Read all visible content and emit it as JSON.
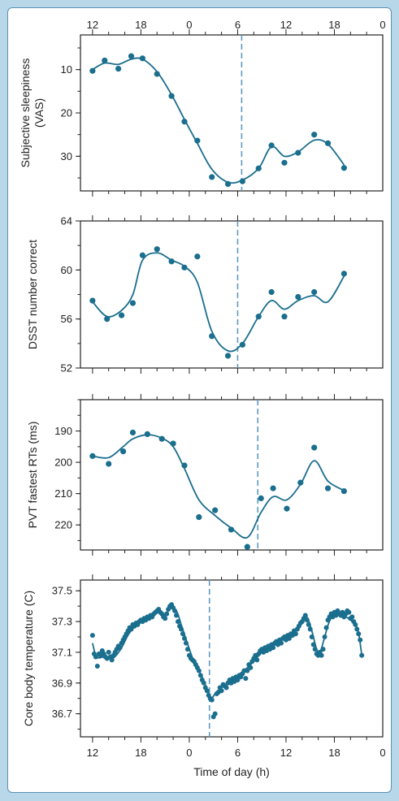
{
  "colors": {
    "background": "#b8d8ea",
    "card_border": "#5b8fb0",
    "series": "#1a6e8e",
    "dashed_line": "#5b9bc2",
    "axis": "#222222"
  },
  "top_axis": {
    "tick_labels": [
      "12",
      "18",
      "0",
      "6",
      "12",
      "18",
      "0"
    ]
  },
  "x_axis": {
    "label": "Time of day (h)",
    "tick_labels": [
      "12",
      "18",
      "0",
      "6",
      "12",
      "18",
      "0"
    ]
  },
  "chart_data": [
    {
      "type": "line",
      "ylabel": "Subjective sleepiness (VAS)",
      "ylim": [
        2,
        38
      ],
      "inverted_y": true,
      "yticks": [
        10,
        20,
        30
      ],
      "x_unit": "hours from 12:00 on day 1",
      "xlim": [
        -1.5,
        36
      ],
      "dashed_marker_x": 18.5,
      "points": [
        [
          0,
          10.3
        ],
        [
          1.5,
          7.9
        ],
        [
          3.2,
          9.8
        ],
        [
          4.8,
          6.9
        ],
        [
          6.2,
          7.4
        ],
        [
          8,
          11
        ],
        [
          9.8,
          16.1
        ],
        [
          11.4,
          22
        ],
        [
          13,
          26.4
        ],
        [
          14.8,
          34.8
        ],
        [
          16.8,
          36.4
        ],
        [
          18.6,
          35.8
        ],
        [
          20.6,
          32.8
        ],
        [
          22.2,
          27.5
        ],
        [
          23.8,
          31.5
        ],
        [
          25.5,
          29.2
        ],
        [
          27.5,
          25
        ],
        [
          29.2,
          27
        ],
        [
          31.2,
          32.7
        ]
      ],
      "fit": [
        [
          0,
          10
        ],
        [
          1.5,
          8.5
        ],
        [
          3.2,
          8.8
        ],
        [
          4.8,
          7.6
        ],
        [
          6.2,
          7.6
        ],
        [
          8,
          10.5
        ],
        [
          9.8,
          15.8
        ],
        [
          11.4,
          21.5
        ],
        [
          13,
          27
        ],
        [
          14.8,
          33
        ],
        [
          16.8,
          36
        ],
        [
          18.6,
          35.5
        ],
        [
          20.6,
          32.8
        ],
        [
          22.2,
          27.8
        ],
        [
          23.8,
          30
        ],
        [
          25.5,
          29
        ],
        [
          27.5,
          26.3
        ],
        [
          29.2,
          27.2
        ],
        [
          31.2,
          32
        ]
      ]
    },
    {
      "type": "line",
      "ylabel": "DSST number correct",
      "ylim": [
        52,
        64
      ],
      "inverted_y": false,
      "yticks": [
        52,
        56,
        60,
        64
      ],
      "x_unit": "hours from 12:00 on day 1",
      "xlim": [
        -1.5,
        36
      ],
      "dashed_marker_x": 18,
      "points": [
        [
          0,
          57.5
        ],
        [
          1.8,
          56
        ],
        [
          3.6,
          56.3
        ],
        [
          5,
          57.3
        ],
        [
          6.2,
          61.2
        ],
        [
          8,
          61.7
        ],
        [
          9.8,
          60.7
        ],
        [
          11.4,
          60.2
        ],
        [
          13,
          61.1
        ],
        [
          14.8,
          54.6
        ],
        [
          16.8,
          53
        ],
        [
          18.6,
          53.9
        ],
        [
          20.6,
          56.2
        ],
        [
          22.2,
          58.2
        ],
        [
          23.8,
          56.2
        ],
        [
          25.5,
          57.8
        ],
        [
          27.5,
          58.2
        ],
        [
          31.2,
          59.7
        ]
      ],
      "fit": [
        [
          0,
          57.4
        ],
        [
          1.8,
          56.2
        ],
        [
          3.6,
          56.7
        ],
        [
          5,
          58
        ],
        [
          6.2,
          60.8
        ],
        [
          8,
          61.4
        ],
        [
          9.8,
          60.8
        ],
        [
          11.4,
          60.3
        ],
        [
          13,
          59
        ],
        [
          14.8,
          55
        ],
        [
          16.8,
          53.4
        ],
        [
          18.6,
          54
        ],
        [
          20.6,
          56.2
        ],
        [
          22.2,
          57.5
        ],
        [
          23.8,
          56.8
        ],
        [
          25.5,
          57.5
        ],
        [
          27.5,
          57.9
        ],
        [
          29.2,
          57.4
        ],
        [
          31.2,
          59.5
        ]
      ]
    },
    {
      "type": "line",
      "ylabel": "PVT fastest RTs (ms)",
      "ylim": [
        180,
        228
      ],
      "inverted_y": true,
      "yticks": [
        190,
        200,
        210,
        220
      ],
      "x_unit": "hours from 12:00 on day 1",
      "xlim": [
        -1.5,
        36
      ],
      "dashed_marker_x": 20.5,
      "points": [
        [
          0,
          198
        ],
        [
          2,
          200.5
        ],
        [
          3.8,
          196.5
        ],
        [
          5,
          190.5
        ],
        [
          6.8,
          191
        ],
        [
          8.6,
          192.5
        ],
        [
          10,
          194
        ],
        [
          11.4,
          201
        ],
        [
          13.2,
          217.5
        ],
        [
          15.2,
          215.3
        ],
        [
          17.2,
          221.5
        ],
        [
          19.2,
          227
        ],
        [
          20.9,
          211.5
        ],
        [
          22.4,
          208.3
        ],
        [
          24.1,
          214.8
        ],
        [
          25.8,
          206.5
        ],
        [
          27.5,
          195.3
        ],
        [
          29.2,
          208.3
        ],
        [
          31.2,
          209.2
        ]
      ],
      "fit": [
        [
          0,
          198
        ],
        [
          2,
          198.5
        ],
        [
          3.8,
          195
        ],
        [
          5,
          192.5
        ],
        [
          6.8,
          191.2
        ],
        [
          8.6,
          192.3
        ],
        [
          10,
          195
        ],
        [
          11.4,
          202
        ],
        [
          13.2,
          212
        ],
        [
          15.2,
          217
        ],
        [
          17.2,
          221
        ],
        [
          19.2,
          224
        ],
        [
          20.9,
          216
        ],
        [
          22.4,
          211
        ],
        [
          24.1,
          212
        ],
        [
          25.8,
          207
        ],
        [
          27.5,
          199.5
        ],
        [
          29.2,
          206
        ],
        [
          31.2,
          209
        ]
      ]
    },
    {
      "type": "line",
      "ylabel": "Core body temperature (C)",
      "ylim": [
        36.55,
        37.57
      ],
      "inverted_y": false,
      "yticks": [
        36.7,
        36.9,
        37.1,
        37.3,
        37.5
      ],
      "x_unit": "hours from 12:00 on day 1",
      "xlim": [
        -1.5,
        36
      ],
      "dashed_marker_x": 14.5,
      "fit": [
        [
          0,
          37.16
        ],
        [
          0.5,
          37.07
        ],
        [
          1.5,
          37.07
        ],
        [
          2.5,
          37.06
        ],
        [
          3.5,
          37.12
        ],
        [
          4.5,
          37.22
        ],
        [
          5.5,
          37.28
        ],
        [
          6.5,
          37.32
        ],
        [
          7.5,
          37.35
        ],
        [
          8.3,
          37.37
        ],
        [
          9,
          37.34
        ],
        [
          9.5,
          37.38
        ],
        [
          10,
          37.39
        ],
        [
          10.5,
          37.36
        ],
        [
          11,
          37.28
        ],
        [
          11.5,
          37.2
        ],
        [
          12.5,
          37.05
        ],
        [
          13.5,
          36.95
        ],
        [
          14.2,
          36.86
        ],
        [
          14.7,
          36.8
        ],
        [
          15.2,
          36.83
        ],
        [
          16,
          36.87
        ],
        [
          17,
          36.91
        ],
        [
          18,
          36.95
        ],
        [
          19,
          36.99
        ],
        [
          20,
          37.04
        ],
        [
          21,
          37.1
        ],
        [
          22,
          37.13
        ],
        [
          23,
          37.16
        ],
        [
          24,
          37.2
        ],
        [
          25,
          37.23
        ],
        [
          26,
          37.3
        ],
        [
          26.6,
          37.33
        ],
        [
          27.2,
          37.24
        ],
        [
          27.8,
          37.12
        ],
        [
          28.2,
          37.1
        ],
        [
          28.7,
          37.18
        ],
        [
          29.3,
          37.29
        ],
        [
          30,
          37.35
        ],
        [
          30.8,
          37.36
        ],
        [
          31.5,
          37.33
        ],
        [
          32.2,
          37.3
        ],
        [
          32.9,
          37.25
        ],
        [
          33.4,
          37.08
        ]
      ],
      "points": [
        [
          0,
          37.21
        ],
        [
          0.2,
          37.09
        ],
        [
          0.4,
          37.07
        ],
        [
          0.6,
          37.01
        ],
        [
          0.8,
          37.09
        ],
        [
          1.0,
          37.08
        ],
        [
          1.2,
          37.11
        ],
        [
          1.4,
          37.09
        ],
        [
          1.6,
          37.07
        ],
        [
          1.8,
          37.06
        ],
        [
          2.0,
          37.1
        ],
        [
          2.2,
          37.07
        ],
        [
          2.4,
          37.05
        ],
        [
          2.6,
          37.08
        ],
        [
          2.8,
          37.1
        ],
        [
          3.0,
          37.12
        ],
        [
          3.2,
          37.14
        ],
        [
          3.4,
          37.13
        ],
        [
          3.6,
          37.16
        ],
        [
          3.8,
          37.18
        ],
        [
          4.0,
          37.2
        ],
        [
          4.2,
          37.22
        ],
        [
          4.4,
          37.24
        ],
        [
          4.6,
          37.26
        ],
        [
          4.8,
          37.25
        ],
        [
          5.0,
          37.28
        ],
        [
          5.2,
          37.27
        ],
        [
          5.4,
          37.29
        ],
        [
          5.6,
          37.28
        ],
        [
          5.8,
          37.3
        ],
        [
          6.0,
          37.31
        ],
        [
          6.2,
          37.3
        ],
        [
          6.4,
          37.32
        ],
        [
          6.6,
          37.31
        ],
        [
          6.8,
          37.33
        ],
        [
          7.0,
          37.32
        ],
        [
          7.2,
          37.34
        ],
        [
          7.4,
          37.33
        ],
        [
          7.6,
          37.35
        ],
        [
          7.8,
          37.36
        ],
        [
          8.0,
          37.37
        ],
        [
          8.2,
          37.38
        ],
        [
          8.4,
          37.36
        ],
        [
          8.6,
          37.35
        ],
        [
          8.8,
          37.33
        ],
        [
          9.0,
          37.32
        ],
        [
          9.2,
          37.35
        ],
        [
          9.4,
          37.38
        ],
        [
          9.6,
          37.4
        ],
        [
          9.8,
          37.41
        ],
        [
          10.0,
          37.39
        ],
        [
          10.2,
          37.37
        ],
        [
          10.4,
          37.34
        ],
        [
          10.6,
          37.3
        ],
        [
          10.8,
          37.27
        ],
        [
          11.0,
          37.25
        ],
        [
          11.2,
          37.22
        ],
        [
          11.4,
          37.19
        ],
        [
          11.6,
          37.16
        ],
        [
          11.8,
          37.12
        ],
        [
          12.0,
          37.08
        ],
        [
          12.2,
          37.06
        ],
        [
          12.4,
          37.05
        ],
        [
          12.6,
          37.04
        ],
        [
          12.8,
          37.02
        ],
        [
          13.0,
          37.0
        ],
        [
          13.2,
          36.98
        ],
        [
          13.4,
          36.95
        ],
        [
          13.6,
          36.92
        ],
        [
          13.8,
          36.9
        ],
        [
          14.0,
          36.87
        ],
        [
          14.2,
          36.85
        ],
        [
          14.4,
          36.82
        ],
        [
          14.6,
          36.8
        ],
        [
          14.8,
          36.79
        ],
        [
          15.0,
          36.68
        ],
        [
          15.2,
          36.7
        ],
        [
          15.4,
          36.83
        ],
        [
          15.6,
          36.84
        ],
        [
          15.8,
          36.87
        ],
        [
          16.0,
          36.85
        ],
        [
          16.2,
          36.89
        ],
        [
          16.4,
          36.88
        ],
        [
          16.6,
          36.87
        ],
        [
          16.8,
          36.9
        ],
        [
          17.0,
          36.92
        ],
        [
          17.2,
          36.9
        ],
        [
          17.4,
          36.93
        ],
        [
          17.6,
          36.91
        ],
        [
          17.8,
          36.94
        ],
        [
          18.0,
          36.92
        ],
        [
          18.2,
          36.95
        ],
        [
          18.4,
          36.94
        ],
        [
          18.6,
          36.96
        ],
        [
          18.8,
          36.98
        ],
        [
          19.0,
          36.93
        ],
        [
          19.2,
          36.98
        ],
        [
          19.4,
          37.02
        ],
        [
          19.6,
          37.0
        ],
        [
          19.8,
          37.04
        ],
        [
          20.0,
          37.06
        ],
        [
          20.2,
          37.08
        ],
        [
          20.4,
          37.05
        ],
        [
          20.6,
          37.09
        ],
        [
          20.8,
          37.11
        ],
        [
          21.0,
          37.12
        ],
        [
          21.2,
          37.1
        ],
        [
          21.4,
          37.13
        ],
        [
          21.6,
          37.11
        ],
        [
          21.8,
          37.14
        ],
        [
          22.0,
          37.12
        ],
        [
          22.2,
          37.15
        ],
        [
          22.4,
          37.13
        ],
        [
          22.6,
          37.16
        ],
        [
          22.8,
          37.17
        ],
        [
          23.0,
          37.15
        ],
        [
          23.2,
          37.18
        ],
        [
          23.4,
          37.16
        ],
        [
          23.6,
          37.19
        ],
        [
          23.8,
          37.2
        ],
        [
          24.0,
          37.18
        ],
        [
          24.2,
          37.21
        ],
        [
          24.4,
          37.19
        ],
        [
          24.6,
          37.22
        ],
        [
          24.8,
          37.21
        ],
        [
          25.0,
          37.24
        ],
        [
          25.2,
          37.22
        ],
        [
          25.4,
          37.25
        ],
        [
          25.6,
          37.27
        ],
        [
          25.8,
          37.29
        ],
        [
          26.0,
          37.3
        ],
        [
          26.2,
          37.32
        ],
        [
          26.4,
          37.34
        ],
        [
          26.6,
          37.31
        ],
        [
          26.8,
          37.28
        ],
        [
          27.0,
          37.25
        ],
        [
          27.2,
          37.2
        ],
        [
          27.4,
          37.15
        ],
        [
          27.6,
          37.12
        ],
        [
          27.8,
          37.09
        ],
        [
          28.0,
          37.08
        ],
        [
          28.2,
          37.1
        ],
        [
          28.4,
          37.08
        ],
        [
          28.6,
          37.12
        ],
        [
          28.8,
          37.2
        ],
        [
          29.0,
          37.26
        ],
        [
          29.2,
          37.31
        ],
        [
          29.4,
          37.33
        ],
        [
          29.6,
          37.35
        ],
        [
          29.8,
          37.33
        ],
        [
          30.0,
          37.36
        ],
        [
          30.2,
          37.34
        ],
        [
          30.4,
          37.37
        ],
        [
          30.6,
          37.35
        ],
        [
          30.8,
          37.34
        ],
        [
          31.0,
          37.36
        ],
        [
          31.2,
          37.33
        ],
        [
          31.4,
          37.35
        ],
        [
          31.6,
          37.37
        ],
        [
          31.8,
          37.36
        ],
        [
          32.0,
          37.32
        ],
        [
          32.2,
          37.33
        ],
        [
          32.4,
          37.3
        ],
        [
          32.6,
          37.28
        ],
        [
          32.8,
          37.25
        ],
        [
          33.0,
          37.22
        ],
        [
          33.2,
          37.18
        ],
        [
          33.4,
          37.08
        ]
      ]
    }
  ]
}
